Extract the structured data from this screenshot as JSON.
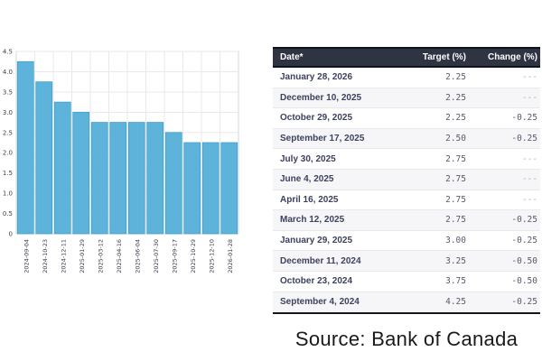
{
  "chart_data": {
    "type": "bar",
    "title": "",
    "xlabel": "",
    "ylabel": "",
    "categories": [
      "2024-09-04",
      "2024-10-23",
      "2024-12-11",
      "2025-01-29",
      "2025-03-12",
      "2025-04-16",
      "2025-06-04",
      "2025-07-30",
      "2025-09-17",
      "2025-10-29",
      "2025-12-10",
      "2026-01-28"
    ],
    "values": [
      4.25,
      3.75,
      3.25,
      3.0,
      2.75,
      2.75,
      2.75,
      2.75,
      2.5,
      2.25,
      2.25,
      2.25
    ],
    "ylim": [
      0,
      4.5
    ],
    "ytick_step": 0.5,
    "yticks": [
      "0",
      "0.5",
      "1.0",
      "1.5",
      "2.0",
      "2.5",
      "3.0",
      "3.5",
      "4.0",
      "4.5"
    ],
    "grid": true,
    "legend": "none",
    "bar_color": "#5db3da",
    "bar_edge_color": "#3f9ecb",
    "grid_color": "#e9e9ec",
    "plot_border_color": "#d7d7dc"
  },
  "table": {
    "columns": [
      "Date*",
      "Target (%)",
      "Change (%)"
    ],
    "no_change_marker": "---",
    "header_bg": "#2f3442",
    "rows": [
      {
        "date": "January 28, 2026",
        "target": "2.25",
        "change": "---"
      },
      {
        "date": "December 10, 2025",
        "target": "2.25",
        "change": "---"
      },
      {
        "date": "October 29, 2025",
        "target": "2.25",
        "change": "-0.25"
      },
      {
        "date": "September 17, 2025",
        "target": "2.50",
        "change": "-0.25"
      },
      {
        "date": "July 30, 2025",
        "target": "2.75",
        "change": "---"
      },
      {
        "date": "June 4, 2025",
        "target": "2.75",
        "change": "---"
      },
      {
        "date": "April 16, 2025",
        "target": "2.75",
        "change": "---"
      },
      {
        "date": "March 12, 2025",
        "target": "2.75",
        "change": "-0.25"
      },
      {
        "date": "January 29, 2025",
        "target": "3.00",
        "change": "-0.25"
      },
      {
        "date": "December 11, 2024",
        "target": "3.25",
        "change": "-0.50"
      },
      {
        "date": "October 23, 2024",
        "target": "3.75",
        "change": "-0.50"
      },
      {
        "date": "September 4, 2024",
        "target": "4.25",
        "change": "-0.25"
      }
    ]
  },
  "source": {
    "label": "Source: Bank of Canada"
  }
}
